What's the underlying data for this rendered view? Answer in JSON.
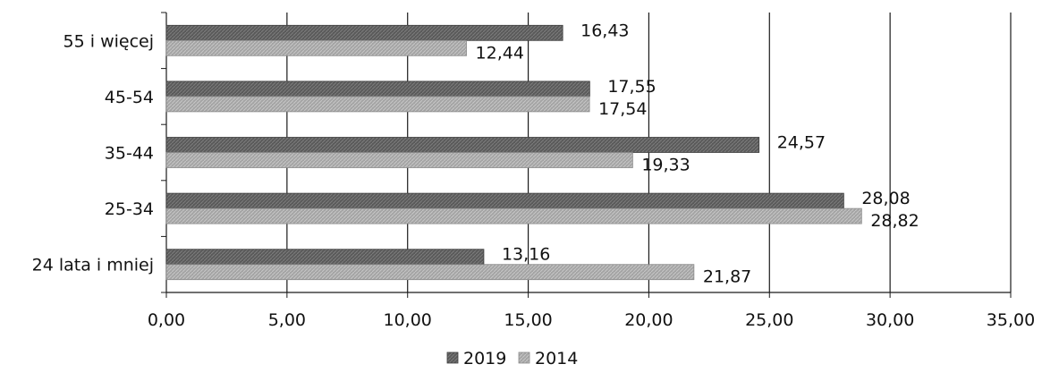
{
  "chart_data": {
    "type": "bar",
    "orientation": "horizontal",
    "categories": [
      "55 i więcej",
      "45-54",
      "35-44",
      "25-34",
      "24 lata i mniej"
    ],
    "series": [
      {
        "name": "2019",
        "values": [
          16.43,
          17.55,
          24.57,
          28.08,
          13.16
        ],
        "value_labels": [
          "16,43",
          "17,55",
          "24,57",
          "28,08",
          "13,16"
        ]
      },
      {
        "name": "2014",
        "values": [
          12.44,
          17.54,
          19.33,
          28.82,
          21.87
        ],
        "value_labels": [
          "12,44",
          "17,54",
          "19,33",
          "28,82",
          "21,87"
        ]
      }
    ],
    "x_ticks": [
      0,
      5,
      10,
      15,
      20,
      25,
      30,
      35
    ],
    "x_tick_labels": [
      "0,00",
      "5,00",
      "10,00",
      "15,00",
      "20,00",
      "25,00",
      "30,00",
      "35,00"
    ],
    "xlim": [
      0,
      35
    ],
    "grid": "vertical",
    "legend": "bottom",
    "colors": {
      "2019": "#5e5e5e",
      "2014": "#a9a9a9"
    }
  }
}
